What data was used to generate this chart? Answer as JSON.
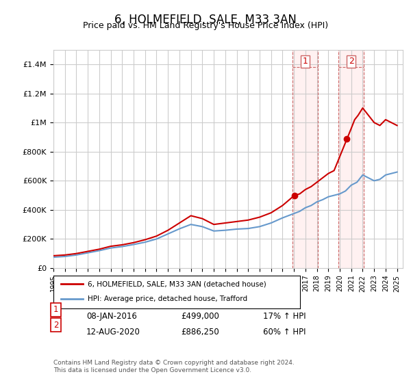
{
  "title": "6, HOLMEFIELD, SALE, M33 3AN",
  "subtitle": "Price paid vs. HM Land Registry's House Price Index (HPI)",
  "legend_line1": "6, HOLMEFIELD, SALE, M33 3AN (detached house)",
  "legend_line2": "HPI: Average price, detached house, Trafford",
  "footnote": "Contains HM Land Registry data © Crown copyright and database right 2024.\nThis data is licensed under the Open Government Licence v3.0.",
  "point1_label": "1",
  "point1_date": "08-JAN-2016",
  "point1_price": "£499,000",
  "point1_hpi": "17% ↑ HPI",
  "point1_year": 2016.03,
  "point1_value": 499000,
  "point2_label": "2",
  "point2_date": "12-AUG-2020",
  "point2_price": "£886,250",
  "point2_hpi": "60% ↑ HPI",
  "point2_year": 2020.62,
  "point2_value": 886250,
  "red_color": "#cc0000",
  "blue_color": "#6699cc",
  "highlight_box_color": "#ffcccc",
  "grid_color": "#cccccc",
  "background_color": "#ffffff",
  "ylim": [
    0,
    1500000
  ],
  "xlim_start": 1995,
  "xlim_end": 2025.5,
  "red_x": [
    1995,
    1996,
    1997,
    1998,
    1999,
    2000,
    2001,
    2002,
    2003,
    2004,
    2005,
    2006,
    2007,
    2008,
    2009,
    2010,
    2011,
    2012,
    2013,
    2014,
    2015,
    2016.03,
    2016.5,
    2017,
    2017.5,
    2018,
    2018.5,
    2019,
    2019.5,
    2020.62,
    2021,
    2021.3,
    2021.6,
    2022,
    2022.5,
    2023,
    2023.5,
    2024,
    2024.5,
    2025
  ],
  "red_y": [
    85000,
    90000,
    100000,
    115000,
    130000,
    150000,
    160000,
    175000,
    195000,
    220000,
    260000,
    310000,
    360000,
    340000,
    300000,
    310000,
    320000,
    330000,
    350000,
    380000,
    430000,
    499000,
    510000,
    540000,
    560000,
    590000,
    620000,
    650000,
    670000,
    886250,
    960000,
    1020000,
    1050000,
    1100000,
    1050000,
    1000000,
    980000,
    1020000,
    1000000,
    980000
  ],
  "blue_x": [
    1995,
    1996,
    1997,
    1998,
    1999,
    2000,
    2001,
    2002,
    2003,
    2004,
    2005,
    2006,
    2007,
    2008,
    2009,
    2010,
    2011,
    2012,
    2013,
    2014,
    2015,
    2016,
    2016.5,
    2017,
    2017.5,
    2018,
    2018.5,
    2019,
    2019.5,
    2020,
    2020.5,
    2021,
    2021.5,
    2022,
    2022.5,
    2023,
    2023.5,
    2024,
    2024.5,
    2025
  ],
  "blue_y": [
    75000,
    80000,
    90000,
    105000,
    120000,
    138000,
    148000,
    162000,
    178000,
    200000,
    235000,
    270000,
    300000,
    285000,
    255000,
    260000,
    268000,
    272000,
    285000,
    310000,
    345000,
    375000,
    390000,
    415000,
    430000,
    455000,
    470000,
    490000,
    500000,
    510000,
    530000,
    570000,
    590000,
    640000,
    620000,
    600000,
    610000,
    640000,
    650000,
    660000
  ]
}
